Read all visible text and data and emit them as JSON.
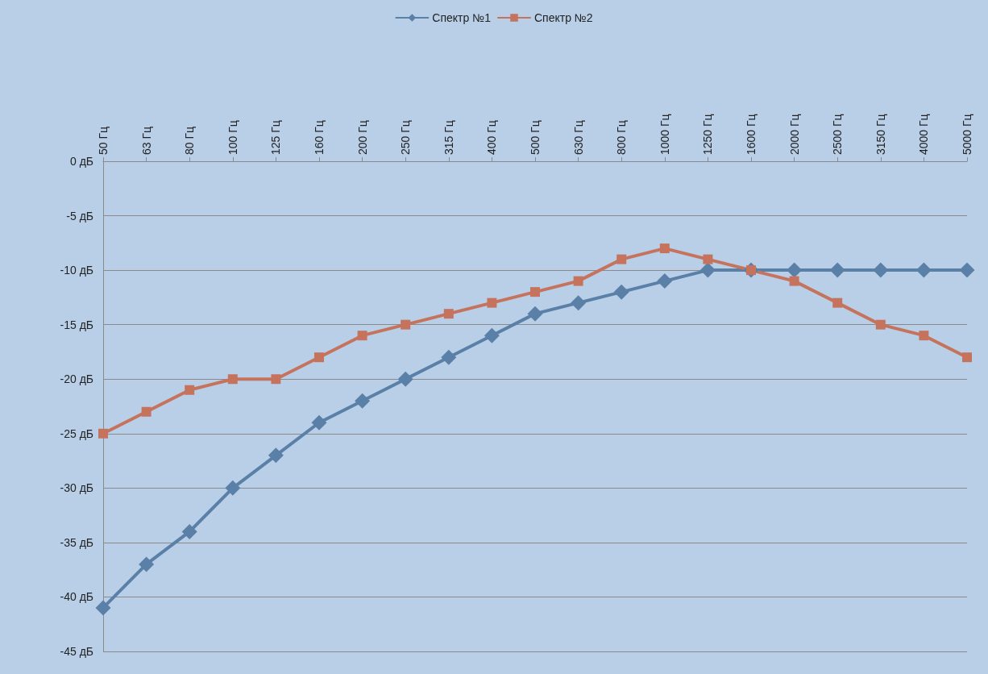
{
  "chart_data": {
    "type": "line",
    "categories": [
      "50 Гц",
      "63 Гц",
      "80 Гц",
      "100 Гц",
      "125 Гц",
      "160 Гц",
      "200 Гц",
      "250 Гц",
      "315 Гц",
      "400 Гц",
      "500 Гц",
      "630 Гц",
      "800 Гц",
      "1000 Гц",
      "1250 Гц",
      "1600 Гц",
      "2000 Гц",
      "2500 Гц",
      "3150 Гц",
      "4000 Гц",
      "5000 Гц"
    ],
    "series": [
      {
        "name": "Спектр №1",
        "color": "#5b80a8",
        "marker": "diamond",
        "values": [
          -41,
          -37,
          -34,
          -30,
          -27,
          -24,
          -22,
          -20,
          -18,
          -16,
          -14,
          -13,
          -12,
          -11,
          -10,
          -10,
          -10,
          -10,
          -10,
          -10,
          -10
        ]
      },
      {
        "name": "Спектр №2",
        "color": "#c6735e",
        "marker": "square",
        "values": [
          -25,
          -23,
          -21,
          -20,
          -20,
          -18,
          -16,
          -15,
          -14,
          -13,
          -12,
          -11,
          -9,
          -8,
          -9,
          -10,
          -11,
          -13,
          -15,
          -16,
          -18
        ]
      }
    ],
    "ylim": [
      -45,
      0
    ],
    "yticks": [
      {
        "value": 0,
        "label": "0 дБ"
      },
      {
        "value": -5,
        "label": "-5 дБ"
      },
      {
        "value": -10,
        "label": "-10 дБ"
      },
      {
        "value": -15,
        "label": "-15 дБ"
      },
      {
        "value": -20,
        "label": "-20 дБ"
      },
      {
        "value": -25,
        "label": "-25 дБ"
      },
      {
        "value": -30,
        "label": "-30 дБ"
      },
      {
        "value": -35,
        "label": "-35 дБ"
      },
      {
        "value": -40,
        "label": "-40 дБ"
      },
      {
        "value": -45,
        "label": "-45 дБ"
      }
    ],
    "grid": "y",
    "legend": "top",
    "line_style": "solid"
  }
}
